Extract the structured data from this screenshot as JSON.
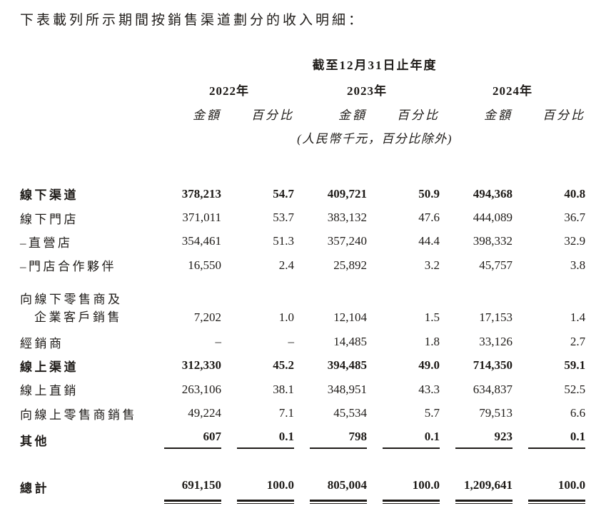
{
  "intro": {
    "text": "下表載列所示期間按銷售渠道劃分的收入明細："
  },
  "table": {
    "period_header": "截至12月31日止年度",
    "unit_note": "(人民幣千元，百分比除外)",
    "years": [
      {
        "year": "2022年",
        "amount_label": "金額",
        "pct_label": "百分比"
      },
      {
        "year": "2023年",
        "amount_label": "金額",
        "pct_label": "百分比"
      },
      {
        "year": "2024年",
        "amount_label": "金額",
        "pct_label": "百分比"
      }
    ],
    "rows": [
      {
        "label": "線下渠道",
        "bold": true,
        "values": [
          "378,213",
          "54.7",
          "409,721",
          "50.9",
          "494,368",
          "40.8"
        ]
      },
      {
        "label": "線下門店",
        "bold": false,
        "values": [
          "371,011",
          "53.7",
          "383,132",
          "47.6",
          "444,089",
          "36.7"
        ]
      },
      {
        "label": "–直營店",
        "bold": false,
        "values": [
          "354,461",
          "51.3",
          "357,240",
          "44.4",
          "398,332",
          "32.9"
        ]
      },
      {
        "label": "–門店合作夥伴",
        "bold": false,
        "values": [
          "16,550",
          "2.4",
          "25,892",
          "3.2",
          "45,757",
          "3.8"
        ]
      },
      {
        "label_line1": "向線下零售商及",
        "label_line2": "企業客戶銷售",
        "bold": false,
        "values": [
          "7,202",
          "1.0",
          "12,104",
          "1.5",
          "17,153",
          "1.4"
        ]
      },
      {
        "label": "經銷商",
        "bold": false,
        "values": [
          "–",
          "–",
          "14,485",
          "1.8",
          "33,126",
          "2.7"
        ]
      },
      {
        "label": "線上渠道",
        "bold": true,
        "values": [
          "312,330",
          "45.2",
          "394,485",
          "49.0",
          "714,350",
          "59.1"
        ]
      },
      {
        "label": "線上直銷",
        "bold": false,
        "values": [
          "263,106",
          "38.1",
          "348,951",
          "43.3",
          "634,837",
          "52.5"
        ]
      },
      {
        "label": "向線上零售商銷售",
        "bold": false,
        "values": [
          "49,224",
          "7.1",
          "45,534",
          "5.7",
          "79,513",
          "6.6"
        ]
      },
      {
        "label": "其他",
        "bold": true,
        "values": [
          "607",
          "0.1",
          "798",
          "0.1",
          "923",
          "0.1"
        ]
      },
      {
        "label": "總計",
        "bold": true,
        "values": [
          "691,150",
          "100.0",
          "805,004",
          "100.0",
          "1,209,641",
          "100.0"
        ]
      }
    ]
  }
}
